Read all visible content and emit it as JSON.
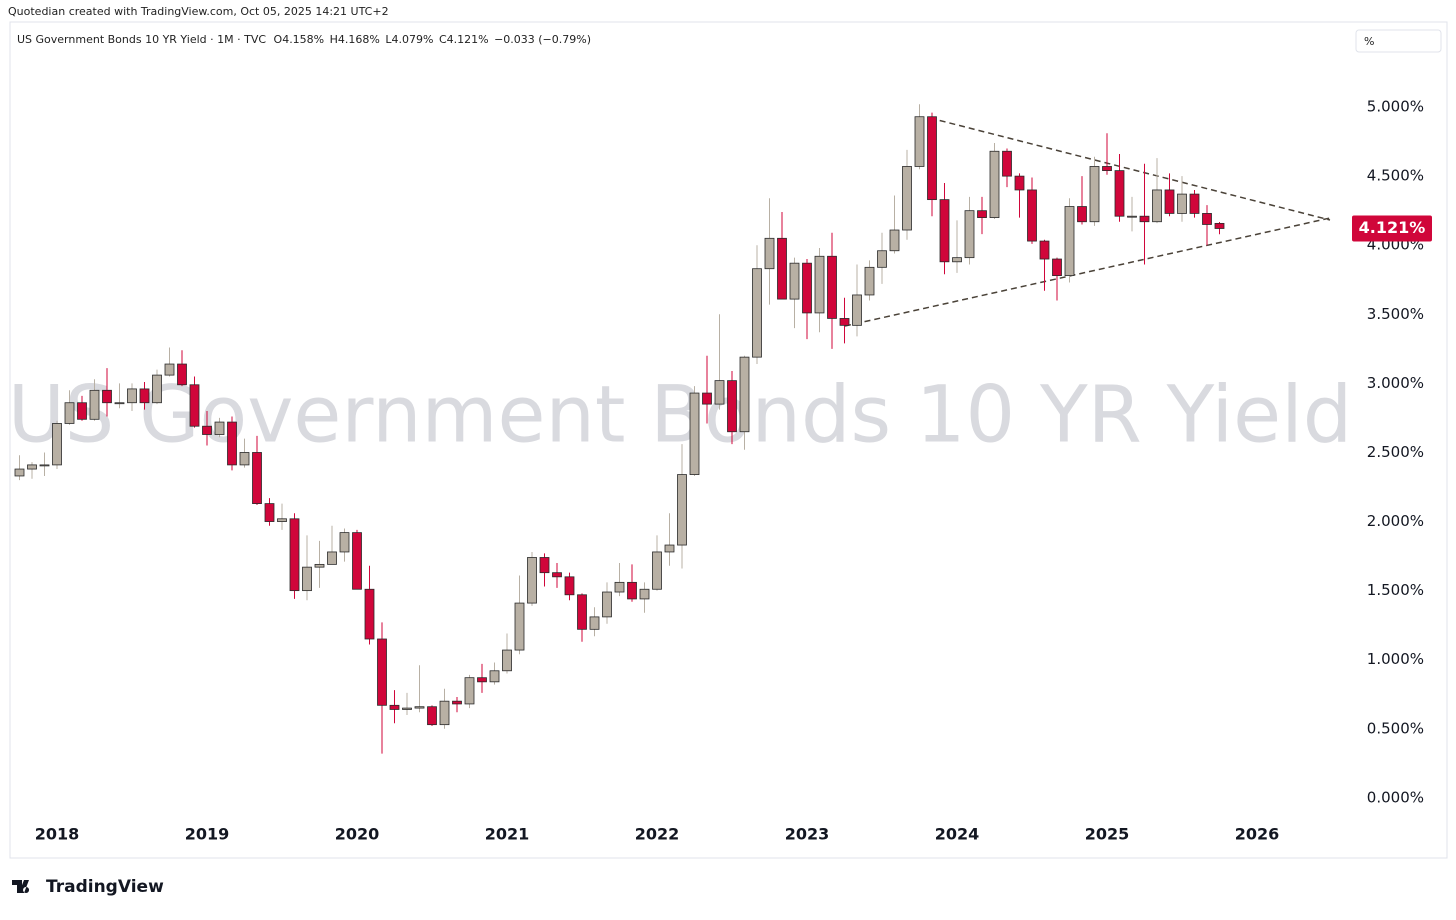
{
  "header": {
    "credit": "Quotedian created with TradingView.com, Oct 05, 2025 14:21 UTC+2",
    "symbol": "US Government Bonds 10 YR Yield · 1M · TVC",
    "open": "O4.158%",
    "high": "H4.168%",
    "low": "L4.079%",
    "close": "C4.121%",
    "change": "−0.033 (−0.79%)",
    "scale_button": "%"
  },
  "watermark": "US Government Bonds 10 YR Yield",
  "footer": {
    "logo": "TradingView"
  },
  "chart_data": {
    "type": "candlestick",
    "categories": [
      null,
      null,
      null,
      "2018",
      null,
      null,
      null,
      null,
      null,
      null,
      null,
      null,
      null,
      null,
      null,
      "2019",
      null,
      null,
      null,
      null,
      null,
      null,
      null,
      null,
      null,
      null,
      null,
      "2020",
      null,
      null,
      null,
      null,
      null,
      null,
      null,
      null,
      null,
      null,
      null,
      "2021",
      null,
      null,
      null,
      null,
      null,
      null,
      null,
      null,
      null,
      null,
      null,
      "2022",
      null,
      null,
      null,
      null,
      null,
      null,
      null,
      null,
      null,
      null,
      null,
      "2023",
      null,
      null,
      null,
      null,
      null,
      null,
      null,
      null,
      null,
      null,
      null,
      "2024",
      null,
      null,
      null,
      null,
      null,
      null,
      null,
      null,
      null,
      null,
      null,
      "2025",
      null,
      null,
      null,
      null,
      null,
      null,
      null,
      null,
      null,
      null,
      null,
      "2026"
    ],
    "open": [
      2.33,
      2.38,
      2.41,
      2.41,
      2.71,
      2.86,
      2.74,
      2.95,
      2.86,
      2.86,
      2.96,
      2.86,
      3.06,
      3.14,
      2.99,
      2.69,
      2.63,
      2.72,
      2.41,
      2.5,
      2.13,
      2.0,
      2.02,
      1.5,
      1.67,
      1.69,
      1.78,
      1.92,
      1.51,
      1.15,
      0.67,
      0.64,
      0.65,
      0.66,
      0.53,
      0.7,
      0.68,
      0.87,
      0.84,
      0.92,
      1.07,
      1.41,
      1.74,
      1.63,
      1.6,
      1.47,
      1.22,
      1.31,
      1.49,
      1.56,
      1.44,
      1.51,
      1.78,
      1.83,
      2.34,
      2.93,
      2.85,
      3.02,
      2.65,
      3.19,
      3.83,
      4.05,
      3.61,
      3.87,
      3.51,
      3.92,
      3.47,
      3.42,
      3.64,
      3.84,
      3.96,
      4.11,
      4.57,
      4.93,
      4.33,
      3.88,
      3.91,
      4.25,
      4.2,
      4.68,
      4.5,
      4.4,
      4.03,
      3.9,
      3.78,
      4.28,
      4.17,
      4.57,
      4.54,
      4.21,
      4.21,
      4.17,
      4.4,
      4.23,
      4.37,
      4.23,
      4.158,
      null,
      null,
      null
    ],
    "high": [
      2.48,
      2.43,
      2.5,
      2.73,
      2.95,
      2.91,
      3.03,
      3.11,
      3.0,
      3.0,
      3.01,
      3.1,
      3.26,
      3.24,
      3.05,
      2.8,
      2.75,
      2.76,
      2.6,
      2.62,
      2.17,
      2.13,
      2.06,
      1.9,
      1.86,
      1.97,
      1.95,
      1.94,
      1.68,
      1.27,
      0.78,
      0.76,
      0.96,
      0.67,
      0.79,
      0.73,
      0.89,
      0.97,
      0.98,
      1.19,
      1.61,
      1.78,
      1.77,
      1.7,
      1.63,
      1.48,
      1.38,
      1.56,
      1.7,
      1.69,
      1.56,
      1.9,
      2.06,
      2.56,
      2.98,
      3.2,
      3.5,
      3.09,
      3.2,
      4.0,
      4.34,
      4.24,
      3.91,
      3.9,
      3.98,
      4.09,
      3.62,
      3.86,
      3.89,
      4.09,
      4.36,
      4.69,
      5.02,
      4.96,
      4.45,
      4.18,
      4.35,
      4.35,
      4.74,
      4.7,
      4.52,
      4.49,
      4.04,
      3.91,
      4.34,
      4.5,
      4.64,
      4.81,
      4.66,
      4.35,
      4.59,
      4.63,
      4.52,
      4.5,
      4.4,
      4.29,
      4.168,
      null,
      null,
      null
    ],
    "low": [
      2.3,
      2.31,
      2.33,
      2.38,
      2.7,
      2.73,
      2.73,
      2.76,
      2.82,
      2.8,
      2.81,
      2.85,
      3.05,
      2.98,
      2.68,
      2.55,
      2.61,
      2.37,
      2.39,
      2.12,
      1.97,
      1.94,
      1.44,
      1.43,
      1.52,
      1.7,
      1.71,
      1.51,
      1.11,
      0.32,
      0.54,
      0.6,
      0.62,
      0.52,
      0.5,
      0.62,
      0.65,
      0.76,
      0.82,
      0.9,
      1.04,
      1.39,
      1.53,
      1.52,
      1.43,
      1.13,
      1.17,
      1.26,
      1.46,
      1.42,
      1.34,
      1.5,
      1.68,
      1.66,
      2.33,
      2.71,
      2.81,
      2.56,
      2.52,
      3.14,
      3.57,
      3.61,
      3.4,
      3.32,
      3.37,
      3.25,
      3.29,
      3.34,
      3.6,
      3.72,
      3.94,
      4.04,
      4.55,
      4.21,
      3.79,
      3.8,
      3.86,
      4.08,
      4.19,
      4.42,
      4.2,
      4.01,
      3.67,
      3.6,
      3.73,
      4.15,
      4.14,
      4.51,
      4.17,
      4.1,
      3.86,
      4.16,
      4.21,
      4.17,
      4.2,
      4.0,
      4.079,
      null,
      null,
      null
    ],
    "close": [
      2.38,
      2.41,
      2.41,
      2.71,
      2.86,
      2.74,
      2.95,
      2.86,
      2.86,
      2.96,
      2.86,
      3.06,
      3.14,
      2.99,
      2.69,
      2.63,
      2.72,
      2.41,
      2.5,
      2.13,
      2.0,
      2.02,
      1.5,
      1.67,
      1.69,
      1.78,
      1.92,
      1.51,
      1.15,
      0.67,
      0.64,
      0.65,
      0.66,
      0.53,
      0.7,
      0.68,
      0.87,
      0.84,
      0.92,
      1.07,
      1.41,
      1.74,
      1.63,
      1.6,
      1.47,
      1.22,
      1.31,
      1.49,
      1.56,
      1.44,
      1.51,
      1.78,
      1.83,
      2.34,
      2.93,
      2.85,
      3.02,
      2.65,
      3.19,
      3.83,
      4.05,
      3.61,
      3.87,
      3.51,
      3.92,
      3.47,
      3.42,
      3.64,
      3.84,
      3.96,
      4.11,
      4.57,
      4.93,
      4.33,
      3.88,
      3.91,
      4.25,
      4.2,
      4.68,
      4.5,
      4.4,
      4.03,
      3.9,
      3.78,
      4.28,
      4.17,
      4.57,
      4.54,
      4.21,
      4.21,
      4.17,
      4.4,
      4.23,
      4.37,
      4.23,
      4.15,
      4.121,
      null,
      null,
      null
    ],
    "up_color": "#b8b0a4",
    "down_color": "#d0063a",
    "outline_color": "#2a2a2a",
    "ylim": [
      -0.16,
      5.63
    ],
    "yticks": [
      {
        "value": 0,
        "label": "0.000%"
      },
      {
        "value": 0.5,
        "label": "0.500%"
      },
      {
        "value": 1,
        "label": "1.000%"
      },
      {
        "value": 1.5,
        "label": "1.500%"
      },
      {
        "value": 2,
        "label": "2.000%"
      },
      {
        "value": 2.5,
        "label": "2.500%"
      },
      {
        "value": 3,
        "label": "3.000%"
      },
      {
        "value": 3.5,
        "label": "3.500%"
      },
      {
        "value": 4,
        "label": "4.000%"
      },
      {
        "value": 4.5,
        "label": "4.500%"
      },
      {
        "value": 5,
        "label": "5.000%"
      }
    ],
    "last_price": {
      "value": 4.121,
      "label": "4.121%"
    },
    "grid": false
  }
}
